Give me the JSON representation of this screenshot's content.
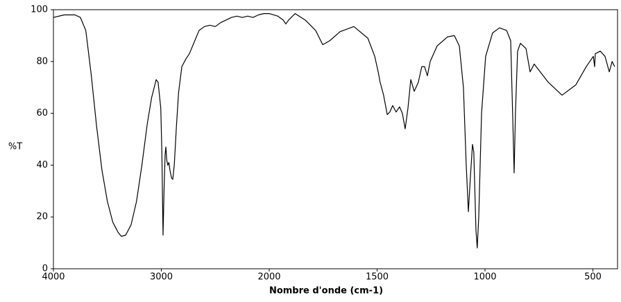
{
  "chart_data": {
    "type": "line",
    "xlabel": "Nombre d'onde (cm-1)",
    "ylabel": "%T",
    "color": "#000000",
    "x": [
      4000,
      3900,
      3800,
      3750,
      3700,
      3650,
      3600,
      3550,
      3500,
      3450,
      3400,
      3370,
      3330,
      3280,
      3230,
      3180,
      3130,
      3090,
      3060,
      3048,
      3030,
      3005,
      2995,
      2984,
      2975,
      2965,
      2958,
      2950,
      2940,
      2930,
      2920,
      2905,
      2894,
      2880,
      2860,
      2840,
      2810,
      2772,
      2740,
      2700,
      2650,
      2600,
      2550,
      2500,
      2450,
      2400,
      2350,
      2300,
      2250,
      2200,
      2150,
      2100,
      2050,
      2000,
      1960,
      1935,
      1923,
      1910,
      1880,
      1833,
      1785,
      1752,
      1720,
      1672,
      1608,
      1543,
      1511,
      1495,
      1486,
      1470,
      1453,
      1441,
      1428,
      1412,
      1396,
      1383,
      1370,
      1357,
      1344,
      1328,
      1309,
      1293,
      1280,
      1267,
      1254,
      1222,
      1174,
      1142,
      1119,
      1100,
      1087,
      1077,
      1068,
      1058,
      1052,
      1042,
      1036,
      1029,
      1016,
      997,
      965,
      933,
      900,
      881,
      872,
      865,
      859,
      849,
      836,
      810,
      791,
      772,
      707,
      643,
      579,
      531,
      498,
      492,
      489,
      466,
      444,
      424,
      411,
      399
    ],
    "values": [
      97,
      98,
      98,
      97,
      92,
      75,
      55,
      38,
      26,
      18,
      14,
      12.5,
      13,
      17,
      26,
      40,
      56,
      66,
      71,
      73,
      72,
      62,
      45,
      13,
      30,
      44,
      47,
      42,
      40,
      41,
      38,
      35,
      34.5,
      40,
      55,
      68,
      78,
      81,
      83,
      87,
      92,
      93.5,
      94,
      93.5,
      95,
      96,
      97,
      97.5,
      97,
      97.5,
      97,
      98,
      98.5,
      98.5,
      97.5,
      96,
      94.5,
      96,
      98.5,
      96,
      92,
      86.5,
      88,
      91.5,
      93.5,
      89,
      82,
      76,
      72,
      67,
      59.5,
      60.5,
      63,
      60.5,
      62.5,
      60,
      54,
      62,
      73,
      68.5,
      72,
      78,
      78,
      74.5,
      80,
      86,
      89.5,
      90,
      86,
      70,
      40,
      22,
      35,
      48,
      45,
      15,
      8,
      20,
      60,
      82,
      91,
      93,
      92,
      88,
      60,
      37,
      60,
      84,
      87,
      85,
      76,
      79,
      72,
      67,
      71,
      78,
      82,
      78,
      83,
      84,
      82,
      76,
      80,
      78
    ],
    "xlim": [
      4000,
      400
    ],
    "xticks": [
      4000,
      3000,
      2000,
      1500,
      1000,
      500
    ],
    "ylim": [
      0,
      100
    ],
    "yticks": [
      0,
      20,
      40,
      60,
      80,
      100
    ]
  }
}
